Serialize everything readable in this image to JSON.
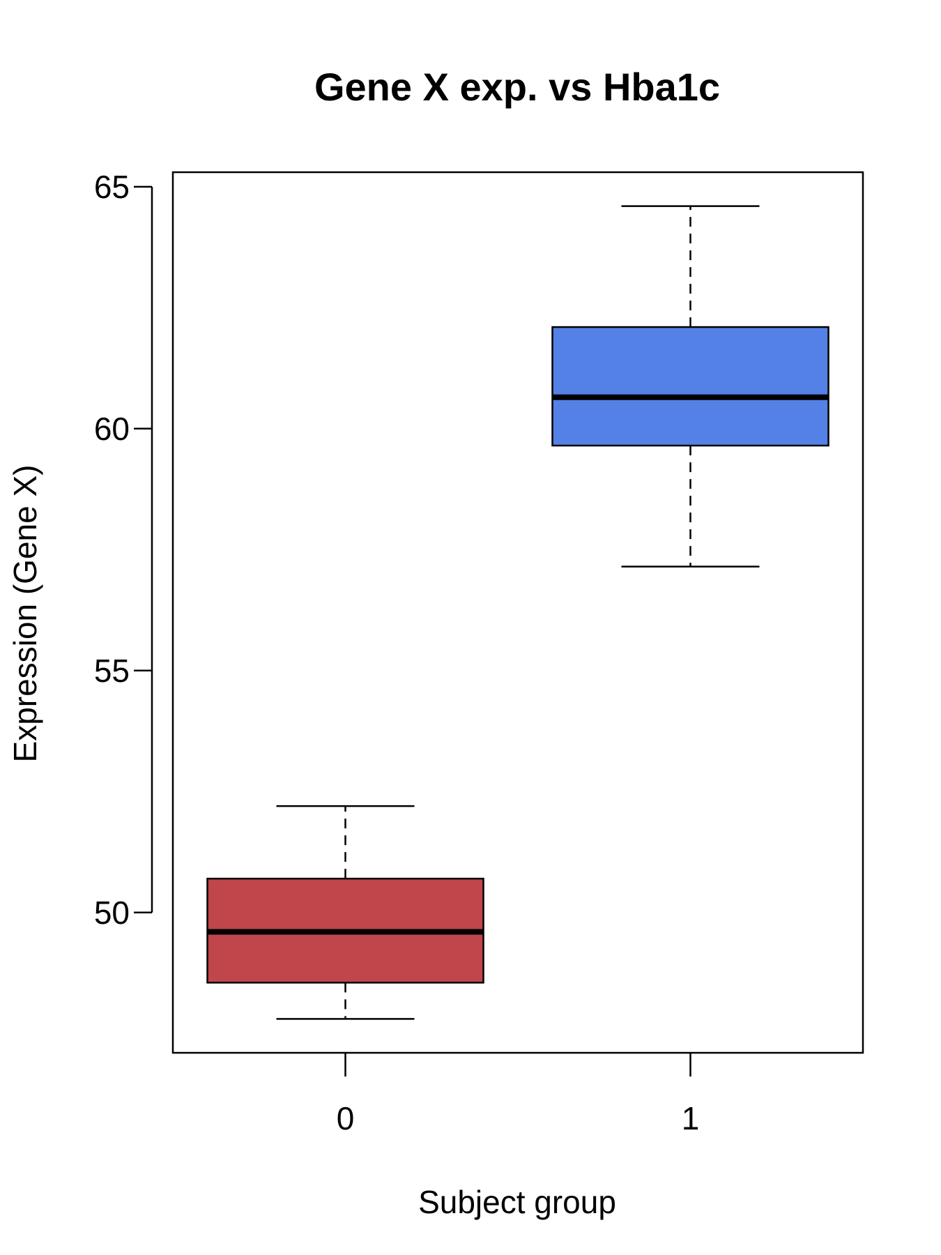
{
  "chart_data": {
    "type": "boxplot",
    "title": "Gene X exp. vs Hba1c",
    "xlabel": "Subject group",
    "ylabel": "Expression (Gene X)",
    "categories": [
      "0",
      "1"
    ],
    "ylim": [
      47.1,
      65.3
    ],
    "yticks": [
      "50",
      "55",
      "60",
      "65"
    ],
    "boxes": [
      {
        "category": "0",
        "whisker_low": 47.8,
        "q1": 48.55,
        "median": 49.6,
        "q3": 50.7,
        "whisker_high": 52.2,
        "color": "#c0464b"
      },
      {
        "category": "1",
        "whisker_low": 57.15,
        "q1": 59.65,
        "median": 60.65,
        "q3": 62.1,
        "whisker_high": 64.6,
        "color": "#5481e6"
      }
    ],
    "grid": false,
    "legend": "none"
  }
}
